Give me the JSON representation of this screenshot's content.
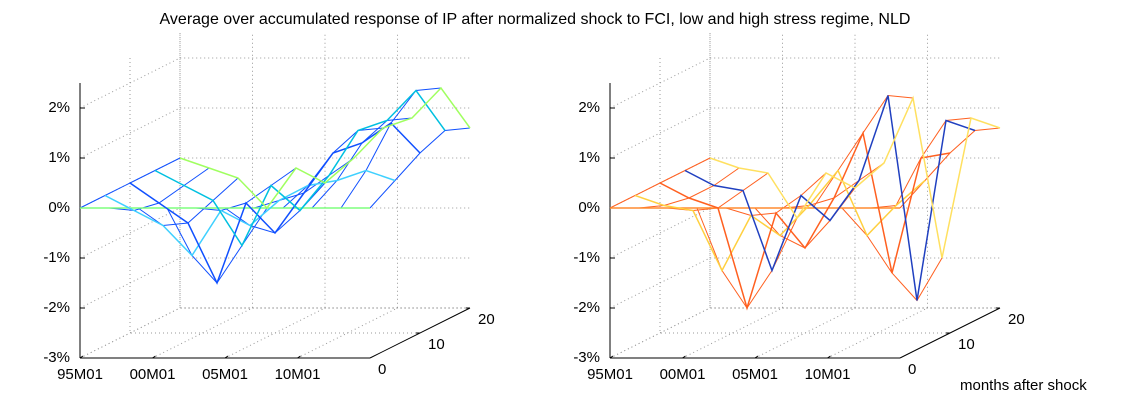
{
  "title": "Average over accumulated response of IP after normalized shock to FCI, low and high stress regime, NLD",
  "chart_data": [
    {
      "type": "surface3d",
      "x": [
        1995,
        1997,
        1999,
        2001,
        2003,
        2005,
        2007,
        2009,
        2011,
        2013,
        2015
      ],
      "xlim": [
        1995,
        2015
      ],
      "xticks": [
        {
          "value": 1995,
          "label": "95M01"
        },
        {
          "value": 2000,
          "label": "00M01"
        },
        {
          "value": 2005,
          "label": "05M01"
        },
        {
          "value": 2010,
          "label": "10M01"
        }
      ],
      "ylim": [
        0,
        20
      ],
      "yticks": [
        0,
        10,
        20
      ],
      "zlim": [
        -3,
        2.5
      ],
      "zticks": [
        {
          "value": -3,
          "label": "-3%"
        },
        {
          "value": -2,
          "label": "-2%"
        },
        {
          "value": -1,
          "label": "-1%"
        },
        {
          "value": 0,
          "label": "0%"
        },
        {
          "value": 1,
          "label": "1%"
        },
        {
          "value": 2,
          "label": "2%"
        }
      ],
      "grid": true,
      "series": [
        {
          "y": 0,
          "color": "#7fff7f",
          "values": [
            0,
            0,
            0,
            0,
            0,
            0,
            0,
            0,
            0,
            0,
            0
          ]
        },
        {
          "y": 5,
          "color": "#3fd0ff",
          "values": [
            0,
            -0.3,
            -0.6,
            -1.2,
            -0.3,
            -0.6,
            -0.1,
            0.2,
            0.3,
            0.5,
            0.3
          ]
        },
        {
          "y": 10,
          "color": "#1050ff",
          "values": [
            0,
            -0.4,
            -0.8,
            -2.0,
            -0.4,
            -1.0,
            -0.2,
            0.6,
            0.8,
            1.2,
            0.6
          ]
        },
        {
          "y": 15,
          "color": "#00c0e0",
          "values": [
            0,
            -0.3,
            -0.6,
            -1.5,
            -0.3,
            -0.8,
            -0.1,
            0.8,
            1.0,
            1.6,
            0.8
          ]
        },
        {
          "y": 20,
          "color": "#a0ff60",
          "values": [
            0,
            -0.2,
            -0.4,
            -1.0,
            -0.2,
            -0.5,
            0,
            0.6,
            0.8,
            1.4,
            0.6
          ]
        }
      ]
    },
    {
      "type": "surface3d",
      "x": [
        1995,
        1997,
        1999,
        2001,
        2003,
        2005,
        2007,
        2009,
        2011,
        2013,
        2015
      ],
      "xlim": [
        1995,
        2015
      ],
      "xticks": [
        {
          "value": 1995,
          "label": "95M01"
        },
        {
          "value": 2000,
          "label": "00M01"
        },
        {
          "value": 2005,
          "label": "05M01"
        },
        {
          "value": 2010,
          "label": "10M01"
        }
      ],
      "ylim": [
        0,
        20
      ],
      "yticks": [
        0,
        10,
        20
      ],
      "ylabel": "months after shock",
      "zlim": [
        -3,
        2.5
      ],
      "zticks": [
        {
          "value": -3,
          "label": "-3%"
        },
        {
          "value": -2,
          "label": "-2%"
        },
        {
          "value": -1,
          "label": "-1%"
        },
        {
          "value": 0,
          "label": "0%"
        },
        {
          "value": 1,
          "label": "1%"
        },
        {
          "value": 2,
          "label": "2%"
        }
      ],
      "grid": true,
      "series": [
        {
          "y": 0,
          "color": "#ff8c30",
          "values": [
            0,
            0,
            0,
            0,
            0,
            0,
            0,
            0,
            0,
            0,
            0
          ]
        },
        {
          "y": 5,
          "color": "#ffd040",
          "values": [
            0,
            -0.2,
            -0.3,
            -1.5,
            -0.4,
            -0.8,
            -0.2,
            0.5,
            -0.8,
            -0.2,
            0.3
          ]
        },
        {
          "y": 10,
          "color": "#ff6020",
          "values": [
            0,
            -0.3,
            -0.5,
            -2.5,
            -0.6,
            -1.3,
            -0.3,
            1.0,
            -1.8,
            0.5,
            0.6
          ]
        },
        {
          "y": 15,
          "color": "#2040c0",
          "values": [
            0,
            -0.3,
            -0.4,
            -2.0,
            -0.5,
            -1.0,
            -0.2,
            1.5,
            -2.6,
            1.0,
            0.8
          ]
        },
        {
          "y": 20,
          "color": "#ffe060",
          "values": [
            0,
            -0.2,
            -0.3,
            -1.2,
            -0.3,
            -0.6,
            -0.1,
            1.2,
            -2.0,
            0.8,
            0.6
          ]
        }
      ]
    }
  ]
}
